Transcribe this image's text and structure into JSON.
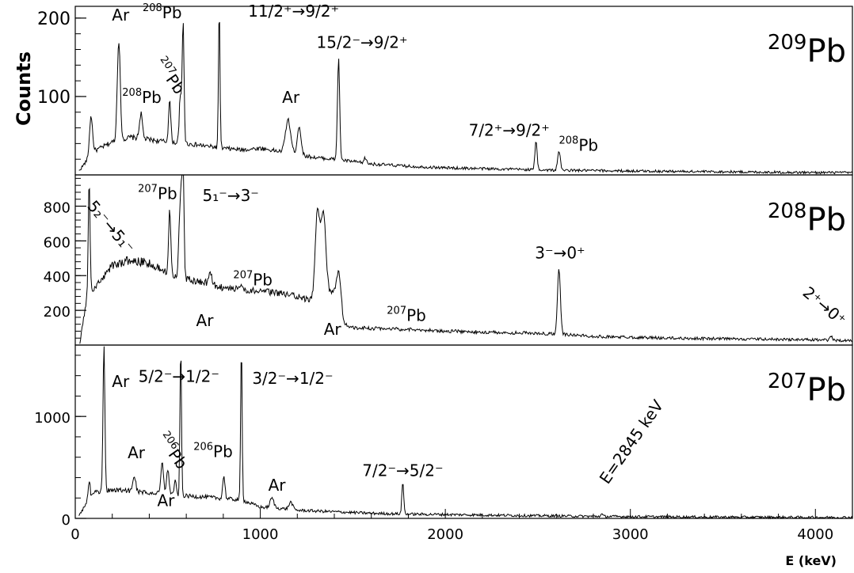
{
  "figure": {
    "xlabel": "E (keV)",
    "ylabel": "Counts",
    "x_ticks": [
      "0",
      "1000",
      "2000",
      "3000",
      "4000"
    ],
    "xlim": [
      0,
      4200
    ]
  },
  "chart_data": [
    {
      "type": "line",
      "title": "209Pb",
      "title_parts": {
        "mass": "209",
        "element": "Pb"
      },
      "ylim": [
        0,
        215
      ],
      "y_ticks": [
        "100",
        "200"
      ],
      "y_tick_values": [
        100,
        200
      ],
      "xlabel": "E (keV)",
      "ylabel": "Counts",
      "baseline": [
        [
          20,
          5
        ],
        [
          100,
          30
        ],
        [
          200,
          42
        ],
        [
          300,
          48
        ],
        [
          400,
          45
        ],
        [
          500,
          42
        ],
        [
          600,
          40
        ],
        [
          700,
          37
        ],
        [
          800,
          34
        ],
        [
          900,
          32
        ],
        [
          1000,
          34
        ],
        [
          1100,
          30
        ],
        [
          1200,
          26
        ],
        [
          1300,
          22
        ],
        [
          1400,
          20
        ],
        [
          1500,
          17
        ],
        [
          1600,
          14
        ],
        [
          1800,
          11
        ],
        [
          2000,
          9
        ],
        [
          2200,
          8
        ],
        [
          2400,
          7
        ],
        [
          2600,
          6
        ],
        [
          3000,
          5
        ],
        [
          3500,
          4
        ],
        [
          4000,
          3
        ],
        [
          4200,
          3
        ]
      ],
      "peaks": [
        {
          "x": 85,
          "y": 75,
          "w": 8
        },
        {
          "x": 235,
          "y": 172,
          "w": 8
        },
        {
          "x": 355,
          "y": 78,
          "w": 8
        },
        {
          "x": 510,
          "y": 95,
          "w": 6
        },
        {
          "x": 568,
          "y": 100,
          "w": 6
        },
        {
          "x": 583,
          "y": 195,
          "w": 5
        },
        {
          "x": 778,
          "y": 215,
          "w": 4
        },
        {
          "x": 1150,
          "y": 70,
          "w": 14
        },
        {
          "x": 1210,
          "y": 62,
          "w": 10
        },
        {
          "x": 1423,
          "y": 148,
          "w": 6
        },
        {
          "x": 1567,
          "y": 22,
          "w": 6
        },
        {
          "x": 2490,
          "y": 42,
          "w": 6
        },
        {
          "x": 2614,
          "y": 31,
          "w": 7
        }
      ],
      "annotations": [
        {
          "label": "Ar",
          "x": 245,
          "y": 197
        },
        {
          "label": "Pb",
          "sup": "208",
          "x": 470,
          "y": 200
        },
        {
          "label": "11/2⁺→9/2⁺",
          "x": 1180,
          "y": 202
        },
        {
          "label": "15/2⁻→9/2⁺",
          "x": 1550,
          "y": 162
        },
        {
          "label": "Pb",
          "sup": "207",
          "x": 487,
          "y": 122,
          "rotate": 55
        },
        {
          "label": "Pb",
          "sup": "208",
          "x": 360,
          "y": 92
        },
        {
          "label": "Ar",
          "x": 1165,
          "y": 92
        },
        {
          "label": "7/2⁺→9/2⁺",
          "x": 2345,
          "y": 50
        },
        {
          "label": "Pb",
          "sup": "208",
          "x": 2720,
          "y": 31
        }
      ]
    },
    {
      "type": "line",
      "title": "208Pb",
      "title_parts": {
        "mass": "208",
        "element": "Pb"
      },
      "ylim": [
        0,
        980
      ],
      "y_ticks": [
        "200",
        "400",
        "600",
        "800"
      ],
      "y_tick_values": [
        200,
        400,
        600,
        800
      ],
      "xlabel": "E (keV)",
      "ylabel": "Counts",
      "baseline": [
        [
          25,
          15
        ],
        [
          60,
          250
        ],
        [
          100,
          320
        ],
        [
          200,
          460
        ],
        [
          300,
          490
        ],
        [
          400,
          470
        ],
        [
          500,
          420
        ],
        [
          600,
          380
        ],
        [
          700,
          360
        ],
        [
          800,
          330
        ],
        [
          900,
          320
        ],
        [
          1000,
          310
        ],
        [
          1100,
          300
        ],
        [
          1200,
          280
        ],
        [
          1290,
          250
        ],
        [
          1400,
          300
        ],
        [
          1450,
          120
        ],
        [
          1500,
          100
        ],
        [
          1800,
          90
        ],
        [
          2000,
          80
        ],
        [
          2400,
          70
        ],
        [
          2600,
          65
        ],
        [
          2800,
          50
        ],
        [
          3200,
          40
        ],
        [
          3600,
          35
        ],
        [
          4000,
          30
        ],
        [
          4200,
          25
        ]
      ],
      "peaks": [
        {
          "x": 75,
          "y": 940,
          "w": 5
        },
        {
          "x": 510,
          "y": 780,
          "w": 6
        },
        {
          "x": 570,
          "y": 890,
          "w": 8
        },
        {
          "x": 583,
          "y": 960,
          "w": 5
        },
        {
          "x": 730,
          "y": 420,
          "w": 8
        },
        {
          "x": 897,
          "y": 360,
          "w": 7
        },
        {
          "x": 1308,
          "y": 740,
          "w": 12
        },
        {
          "x": 1340,
          "y": 760,
          "w": 14
        },
        {
          "x": 1425,
          "y": 420,
          "w": 12
        },
        {
          "x": 2614,
          "y": 440,
          "w": 8
        },
        {
          "x": 4085,
          "y": 55,
          "w": 6
        }
      ],
      "annotations": [
        {
          "label": "5₂⁻→5₁⁻",
          "x": 170,
          "y": 660,
          "rotate": 50
        },
        {
          "label": "Pb",
          "sup": "207",
          "x": 445,
          "y": 840
        },
        {
          "label": "5₁⁻→3⁻",
          "x": 840,
          "y": 830
        },
        {
          "label": "Pb",
          "sup": "207",
          "x": 960,
          "y": 345
        },
        {
          "label": "Ar",
          "x": 700,
          "y": 110
        },
        {
          "label": "Ar",
          "x": 1390,
          "y": 60
        },
        {
          "label": "Pb",
          "sup": "207",
          "x": 1790,
          "y": 140
        },
        {
          "label": "3⁻→0⁺",
          "x": 2620,
          "y": 500
        },
        {
          "label": "2⁺→0⁺",
          "x": 4030,
          "y": 200,
          "rotate": 40
        }
      ]
    },
    {
      "type": "line",
      "title": "207Pb",
      "title_parts": {
        "mass": "207",
        "element": "Pb"
      },
      "ylim": [
        0,
        1700
      ],
      "y_ticks": [
        "0",
        "1000"
      ],
      "y_tick_values": [
        0,
        1000
      ],
      "xlabel": "E (keV)",
      "ylabel": "Counts",
      "baseline": [
        [
          20,
          30
        ],
        [
          60,
          150
        ],
        [
          100,
          250
        ],
        [
          200,
          280
        ],
        [
          300,
          270
        ],
        [
          400,
          250
        ],
        [
          500,
          240
        ],
        [
          600,
          220
        ],
        [
          700,
          210
        ],
        [
          800,
          195
        ],
        [
          900,
          180
        ],
        [
          1000,
          110
        ],
        [
          1100,
          100
        ],
        [
          1200,
          80
        ],
        [
          1400,
          65
        ],
        [
          1600,
          50
        ],
        [
          1800,
          42
        ],
        [
          2000,
          38
        ],
        [
          2400,
          28
        ],
        [
          2800,
          20
        ],
        [
          3200,
          15
        ],
        [
          3600,
          12
        ],
        [
          4000,
          10
        ],
        [
          4200,
          10
        ]
      ],
      "peaks": [
        {
          "x": 75,
          "y": 380,
          "w": 5
        },
        {
          "x": 155,
          "y": 1700,
          "w": 5
        },
        {
          "x": 320,
          "y": 420,
          "w": 7
        },
        {
          "x": 470,
          "y": 540,
          "w": 7
        },
        {
          "x": 500,
          "y": 470,
          "w": 7
        },
        {
          "x": 540,
          "y": 360,
          "w": 6
        },
        {
          "x": 570,
          "y": 1700,
          "w": 4
        },
        {
          "x": 803,
          "y": 420,
          "w": 6
        },
        {
          "x": 898,
          "y": 1700,
          "w": 4
        },
        {
          "x": 1063,
          "y": 200,
          "w": 10
        },
        {
          "x": 1165,
          "y": 160,
          "w": 10
        },
        {
          "x": 1770,
          "y": 360,
          "w": 5
        },
        {
          "x": 2845,
          "y": 40,
          "w": 6
        }
      ],
      "annotations": [
        {
          "label": "Ar",
          "x": 245,
          "y": 1290
        },
        {
          "label": "5/2⁻→1/2⁻",
          "x": 560,
          "y": 1340
        },
        {
          "label": "3/2⁻→1/2⁻",
          "x": 1175,
          "y": 1320
        },
        {
          "label": "Ar",
          "x": 330,
          "y": 590
        },
        {
          "label": "Pb",
          "sup": "206",
          "x": 500,
          "y": 630,
          "rotate": 55
        },
        {
          "label": "Ar",
          "x": 490,
          "y": 120
        },
        {
          "label": "Pb",
          "sup": "206",
          "x": 745,
          "y": 600
        },
        {
          "label": "Ar",
          "x": 1090,
          "y": 270
        },
        {
          "label": "7/2⁻→5/2⁻",
          "x": 1770,
          "y": 415
        },
        {
          "label": "E=2845 keV",
          "x": 3030,
          "y": 720,
          "rotate": -55
        }
      ]
    }
  ]
}
